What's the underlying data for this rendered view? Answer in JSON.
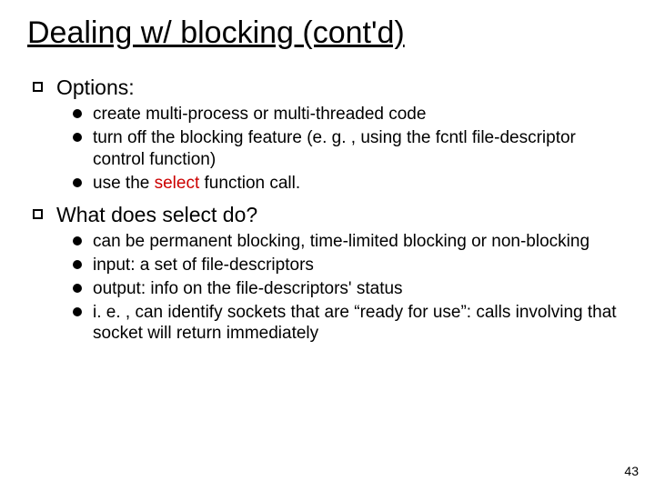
{
  "title": "Dealing w/ blocking (cont'd)",
  "sections": [
    {
      "heading": "Options:",
      "items": [
        {
          "text": "create multi-process or multi-threaded code"
        },
        {
          "text": "turn off the blocking feature (e. g. , using the fcntl file-descriptor control function)"
        },
        {
          "prefix": "use the ",
          "highlight": "select",
          "suffix": " function call."
        }
      ]
    },
    {
      "heading": "What does select do?",
      "items": [
        {
          "text": "can be permanent blocking, time-limited blocking or non-blocking"
        },
        {
          "text": "input: a set of file-descriptors"
        },
        {
          "text": "output: info on the file-descriptors' status"
        },
        {
          "text": "i. e. , can identify sockets that are “ready for use”: calls involving that socket will return immediately"
        }
      ]
    }
  ],
  "pageNumber": "43",
  "colors": {
    "highlight": "#cc0000"
  }
}
